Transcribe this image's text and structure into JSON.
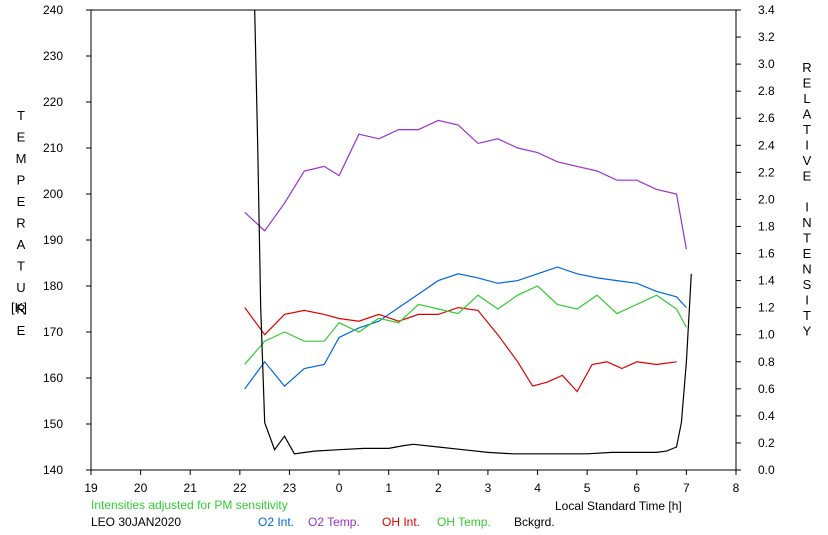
{
  "chart_data": {
    "type": "line",
    "station_label": "LEO 30JAN2020",
    "note": "Intensities adjusted for PM sensitivity",
    "xlabel": "Local Standard Time [h]",
    "ylabel_left_letters": [
      "T",
      "E",
      "M",
      "P",
      "E",
      "R",
      "A",
      "T",
      "U",
      "R",
      "E"
    ],
    "ylabel_left_unit": "[K]",
    "ylabel_right_letters": [
      "R",
      "E",
      "L",
      "A",
      "T",
      "I",
      "V",
      "E",
      "",
      "I",
      "N",
      "T",
      "E",
      "N",
      "S",
      "I",
      "T",
      "Y"
    ],
    "x_ticks": [
      "19",
      "20",
      "21",
      "22",
      "23",
      "0",
      "1",
      "2",
      "3",
      "4",
      "5",
      "6",
      "7",
      "8"
    ],
    "x_range": [
      19,
      32
    ],
    "ylim_left": [
      140,
      240
    ],
    "y_ticks_left": [
      140,
      150,
      160,
      170,
      180,
      190,
      200,
      210,
      220,
      230,
      240
    ],
    "ylim_right": [
      0,
      3.4
    ],
    "y_ticks_right": [
      "0.0",
      "0.2",
      "0.4",
      "0.6",
      "0.8",
      "1.0",
      "1.2",
      "1.4",
      "1.6",
      "1.8",
      "2.0",
      "2.2",
      "2.4",
      "2.6",
      "2.8",
      "3.0",
      "3.2",
      "3.4"
    ],
    "grid": false,
    "legend_position": "bottom",
    "series": [
      {
        "name": "O2 Int.",
        "color": "#0066dd",
        "axis": "right",
        "x": [
          22.1,
          22.5,
          22.9,
          23.3,
          23.7,
          24.0,
          24.4,
          24.8,
          25.2,
          25.6,
          26.0,
          26.4,
          26.8,
          27.2,
          27.6,
          28.0,
          28.4,
          28.8,
          29.2,
          29.6,
          30.0,
          30.4,
          30.8,
          31.0
        ],
        "y": [
          0.6,
          0.8,
          0.62,
          0.75,
          0.78,
          0.98,
          1.05,
          1.1,
          1.2,
          1.3,
          1.4,
          1.45,
          1.42,
          1.38,
          1.4,
          1.45,
          1.5,
          1.45,
          1.42,
          1.4,
          1.38,
          1.32,
          1.28,
          1.2
        ]
      },
      {
        "name": "O2 Temp.",
        "color": "#9933cc",
        "axis": "left",
        "x": [
          22.1,
          22.5,
          22.9,
          23.3,
          23.7,
          24.0,
          24.4,
          24.8,
          25.2,
          25.6,
          26.0,
          26.4,
          26.8,
          27.2,
          27.6,
          28.0,
          28.4,
          28.8,
          29.2,
          29.6,
          30.0,
          30.4,
          30.8,
          31.0
        ],
        "y": [
          196,
          192,
          198,
          205,
          206,
          204,
          213,
          212,
          214,
          214,
          216,
          215,
          211,
          212,
          210,
          209,
          207,
          206,
          205,
          203,
          203,
          201,
          200,
          188
        ]
      },
      {
        "name": "OH Int.",
        "color": "#dd0000",
        "axis": "right",
        "x": [
          22.1,
          22.5,
          22.9,
          23.3,
          23.7,
          24.0,
          24.4,
          24.8,
          25.2,
          25.6,
          26.0,
          26.4,
          26.8,
          27.2,
          27.6,
          27.9,
          28.2,
          28.5,
          28.8,
          29.1,
          29.4,
          29.7,
          30.0,
          30.4,
          30.8
        ],
        "y": [
          1.2,
          1.0,
          1.15,
          1.18,
          1.15,
          1.12,
          1.1,
          1.15,
          1.1,
          1.15,
          1.15,
          1.2,
          1.18,
          1.0,
          0.8,
          0.62,
          0.65,
          0.7,
          0.58,
          0.78,
          0.8,
          0.75,
          0.8,
          0.78,
          0.8
        ]
      },
      {
        "name": "OH Temp.",
        "color": "#33cc33",
        "axis": "left",
        "x": [
          22.1,
          22.5,
          22.9,
          23.3,
          23.7,
          24.0,
          24.4,
          24.8,
          25.2,
          25.6,
          26.0,
          26.4,
          26.8,
          27.2,
          27.6,
          28.0,
          28.4,
          28.8,
          29.2,
          29.6,
          30.0,
          30.4,
          30.8,
          31.0
        ],
        "y": [
          163,
          168,
          170,
          168,
          168,
          172,
          170,
          173,
          172,
          176,
          175,
          174,
          178,
          175,
          178,
          180,
          176,
          175,
          178,
          174,
          176,
          178,
          175,
          171
        ]
      },
      {
        "name": "Bckgrd.",
        "color": "#000000",
        "axis": "right",
        "x": [
          22.3,
          22.36,
          22.42,
          22.5,
          22.7,
          22.9,
          23.1,
          23.5,
          24.0,
          24.5,
          25.0,
          25.3,
          25.5,
          26.0,
          26.5,
          27.0,
          27.5,
          28.0,
          28.5,
          29.0,
          29.5,
          30.0,
          30.4,
          30.6,
          30.8,
          30.9,
          31.0,
          31.1
        ],
        "y": [
          3.4,
          2.4,
          1.2,
          0.35,
          0.15,
          0.25,
          0.12,
          0.14,
          0.15,
          0.16,
          0.16,
          0.18,
          0.19,
          0.17,
          0.15,
          0.13,
          0.12,
          0.12,
          0.12,
          0.12,
          0.13,
          0.13,
          0.13,
          0.14,
          0.17,
          0.35,
          0.8,
          1.45
        ]
      }
    ]
  }
}
